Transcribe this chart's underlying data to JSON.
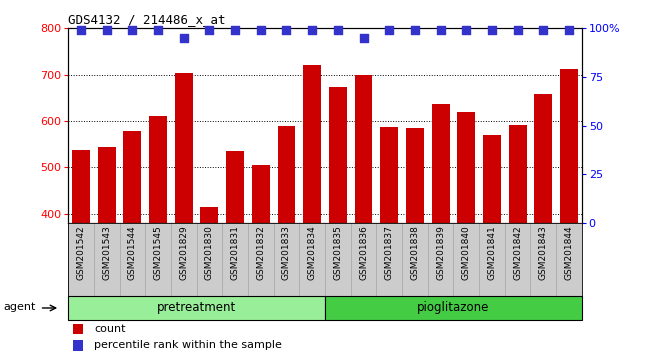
{
  "title": "GDS4132 / 214486_x_at",
  "samples": [
    "GSM201542",
    "GSM201543",
    "GSM201544",
    "GSM201545",
    "GSM201829",
    "GSM201830",
    "GSM201831",
    "GSM201832",
    "GSM201833",
    "GSM201834",
    "GSM201835",
    "GSM201836",
    "GSM201837",
    "GSM201838",
    "GSM201839",
    "GSM201840",
    "GSM201841",
    "GSM201842",
    "GSM201843",
    "GSM201844"
  ],
  "counts": [
    537,
    545,
    578,
    610,
    703,
    415,
    535,
    505,
    590,
    720,
    674,
    700,
    587,
    585,
    637,
    620,
    569,
    592,
    658,
    712
  ],
  "percentile_ranks": [
    99,
    99,
    99,
    99,
    95,
    99,
    99,
    99,
    99,
    99,
    99,
    95,
    99,
    99,
    99,
    99,
    99,
    99,
    99,
    99
  ],
  "ylim_left": [
    380,
    800
  ],
  "ylim_right": [
    0,
    100
  ],
  "bar_color": "#cc0000",
  "dot_color": "#3333cc",
  "grid_ticks_left": [
    400,
    500,
    600,
    700,
    800
  ],
  "right_ticks": [
    0,
    25,
    50,
    75,
    100
  ],
  "pretreatment_count": 10,
  "pioglitazone_count": 10,
  "pretreatment_color": "#99ee99",
  "pioglitazone_color": "#44cc44",
  "agent_label": "agent",
  "legend_count_label": "count",
  "legend_percentile_label": "percentile rank within the sample",
  "bar_width": 0.7,
  "xlabels_bg_color": "#cccccc",
  "spine_color": "#000000",
  "dot_size": 28
}
